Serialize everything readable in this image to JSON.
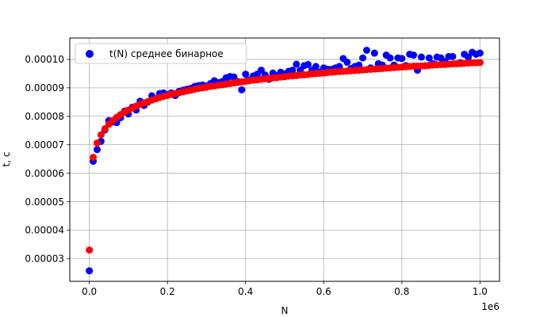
{
  "chart_data": {
    "type": "scatter",
    "xlabel": "N",
    "ylabel": "t, c",
    "x_offset_label": "1e6",
    "xlim": [
      -0.05,
      1.05
    ],
    "ylim": [
      2.2e-05,
      0.0001075
    ],
    "grid": true,
    "legend_position": "top-left",
    "x_ticks": [
      0.0,
      0.2,
      0.4,
      0.6,
      0.8,
      1.0
    ],
    "x_tick_labels": [
      "0.0",
      "0.2",
      "0.4",
      "0.6",
      "0.8",
      "1.0"
    ],
    "y_ticks": [
      3e-05,
      4e-05,
      5e-05,
      6e-05,
      7e-05,
      8e-05,
      9e-05,
      0.0001
    ],
    "y_tick_labels": [
      "0.00003",
      "0.00004",
      "0.00005",
      "0.00006",
      "0.00007",
      "0.00008",
      "0.00009",
      "0.00010"
    ],
    "series": [
      {
        "name": "t(N) среднее бинарное",
        "color": "#0000ff",
        "in_legend": true,
        "x": [
          0.0,
          0.01,
          0.02,
          0.03,
          0.04,
          0.05,
          0.06,
          0.07,
          0.08,
          0.09,
          0.1,
          0.11,
          0.12,
          0.13,
          0.14,
          0.15,
          0.16,
          0.17,
          0.18,
          0.19,
          0.2,
          0.21,
          0.22,
          0.23,
          0.24,
          0.25,
          0.26,
          0.27,
          0.28,
          0.29,
          0.3,
          0.31,
          0.32,
          0.33,
          0.34,
          0.35,
          0.36,
          0.37,
          0.38,
          0.39,
          0.4,
          0.41,
          0.42,
          0.43,
          0.44,
          0.45,
          0.46,
          0.47,
          0.48,
          0.49,
          0.5,
          0.51,
          0.52,
          0.53,
          0.54,
          0.55,
          0.56,
          0.57,
          0.58,
          0.59,
          0.6,
          0.61,
          0.62,
          0.63,
          0.64,
          0.65,
          0.66,
          0.67,
          0.68,
          0.69,
          0.7,
          0.71,
          0.72,
          0.73,
          0.74,
          0.75,
          0.76,
          0.77,
          0.78,
          0.79,
          0.8,
          0.81,
          0.82,
          0.83,
          0.84,
          0.85,
          0.86,
          0.87,
          0.88,
          0.89,
          0.9,
          0.91,
          0.92,
          0.93,
          0.94,
          0.95,
          0.96,
          0.97,
          0.98,
          0.99,
          1.0
        ],
        "y": [
          2.57e-05,
          6.42e-05,
          6.83e-05,
          7.12e-05,
          7.52e-05,
          7.85e-05,
          7.8e-05,
          7.78e-05,
          7.95e-05,
          8.18e-05,
          8.08e-05,
          8.32e-05,
          8.22e-05,
          8.53e-05,
          8.38e-05,
          8.5e-05,
          8.72e-05,
          8.62e-05,
          8.8e-05,
          8.82e-05,
          8.76e-05,
          8.82e-05,
          8.73e-05,
          8.88e-05,
          8.92e-05,
          8.95e-05,
          8.98e-05,
          9.05e-05,
          9.08e-05,
          9.1e-05,
          9.06e-05,
          9.15e-05,
          9.25e-05,
          9.18e-05,
          9.22e-05,
          9.35e-05,
          9.4e-05,
          9.38e-05,
          9.22e-05,
          8.93e-05,
          9.48e-05,
          9.28e-05,
          9.42e-05,
          9.48e-05,
          9.62e-05,
          9.45e-05,
          9.3e-05,
          9.52e-05,
          9.42e-05,
          9.55e-05,
          9.48e-05,
          9.58e-05,
          9.62e-05,
          9.83e-05,
          9.62e-05,
          9.78e-05,
          9.82e-05,
          9.62e-05,
          9.75e-05,
          9.55e-05,
          9.7e-05,
          9.65e-05,
          9.65e-05,
          9.7e-05,
          9.75e-05,
          0.0001003,
          9.9e-05,
          9.68e-05,
          9.75e-05,
          9.8e-05,
          0.0001005,
          0.0001032,
          9.7e-05,
          0.0001022,
          9.85e-05,
          9.8e-05,
          0.0001015,
          0.0001005,
          9.8e-05,
          0.0001005,
          0.0001003,
          9.78e-05,
          0.0001018,
          0.0001015,
          9.62e-05,
          0.0001008,
          9.78e-05,
          0.0001005,
          9.85e-05,
          0.0001008,
          0.0001005,
          9.92e-05,
          0.000101,
          0.000101,
          9.85e-05,
          9.88e-05,
          0.0001018,
          0.0001008,
          0.0001025,
          0.0001018,
          0.0001022
        ]
      },
      {
        "name": "",
        "color": "#ff0000",
        "in_legend": false,
        "x": [
          0.0,
          0.01,
          0.02,
          0.03,
          0.04,
          0.05,
          0.06,
          0.07,
          0.08,
          0.09,
          0.1,
          0.11,
          0.12,
          0.13,
          0.14,
          0.15,
          0.16,
          0.17,
          0.18,
          0.19,
          0.2,
          0.21,
          0.22,
          0.23,
          0.24,
          0.25,
          0.26,
          0.27,
          0.28,
          0.29,
          0.3,
          0.31,
          0.32,
          0.33,
          0.34,
          0.35,
          0.36,
          0.37,
          0.38,
          0.39,
          0.4,
          0.41,
          0.42,
          0.43,
          0.44,
          0.45,
          0.46,
          0.47,
          0.48,
          0.49,
          0.5,
          0.51,
          0.52,
          0.53,
          0.54,
          0.55,
          0.56,
          0.57,
          0.58,
          0.59,
          0.6,
          0.61,
          0.62,
          0.63,
          0.64,
          0.65,
          0.66,
          0.67,
          0.68,
          0.69,
          0.7,
          0.71,
          0.72,
          0.73,
          0.74,
          0.75,
          0.76,
          0.77,
          0.78,
          0.79,
          0.8,
          0.81,
          0.82,
          0.83,
          0.84,
          0.85,
          0.86,
          0.87,
          0.88,
          0.89,
          0.9,
          0.91,
          0.92,
          0.93,
          0.94,
          0.95,
          0.96,
          0.97,
          0.98,
          0.99,
          1.0
        ],
        "y": [
          3.3e-05,
          6.56e-05,
          7.06e-05,
          7.35e-05,
          7.56e-05,
          7.72e-05,
          7.85e-05,
          7.96e-05,
          8.06e-05,
          8.15e-05,
          8.22e-05,
          8.29e-05,
          8.36e-05,
          8.42e-05,
          8.47e-05,
          8.52e-05,
          8.57e-05,
          8.61e-05,
          8.66e-05,
          8.7e-05,
          8.73e-05,
          8.77e-05,
          8.8e-05,
          8.83e-05,
          8.86e-05,
          8.89e-05,
          8.92e-05,
          8.95e-05,
          8.98e-05,
          9e-05,
          9.02e-05,
          9.05e-05,
          9.07e-05,
          9.09e-05,
          9.11e-05,
          9.13e-05,
          9.15e-05,
          9.17e-05,
          9.19e-05,
          9.21e-05,
          9.23e-05,
          9.25e-05,
          9.27e-05,
          9.28e-05,
          9.3e-05,
          9.32e-05,
          9.33e-05,
          9.35e-05,
          9.36e-05,
          9.38e-05,
          9.39e-05,
          9.41e-05,
          9.42e-05,
          9.43e-05,
          9.45e-05,
          9.46e-05,
          9.47e-05,
          9.49e-05,
          9.5e-05,
          9.51e-05,
          9.52e-05,
          9.54e-05,
          9.55e-05,
          9.56e-05,
          9.57e-05,
          9.58e-05,
          9.59e-05,
          9.6e-05,
          9.61e-05,
          9.62e-05,
          9.63e-05,
          9.64e-05,
          9.65e-05,
          9.66e-05,
          9.67e-05,
          9.68e-05,
          9.69e-05,
          9.7e-05,
          9.71e-05,
          9.72e-05,
          9.73e-05,
          9.74e-05,
          9.75e-05,
          9.76e-05,
          9.77e-05,
          9.77e-05,
          9.78e-05,
          9.79e-05,
          9.8e-05,
          9.81e-05,
          9.82e-05,
          9.82e-05,
          9.83e-05,
          9.84e-05,
          9.85e-05,
          9.85e-05,
          9.86e-05,
          9.87e-05,
          9.88e-05,
          9.88e-05,
          9.89e-05
        ]
      }
    ]
  }
}
